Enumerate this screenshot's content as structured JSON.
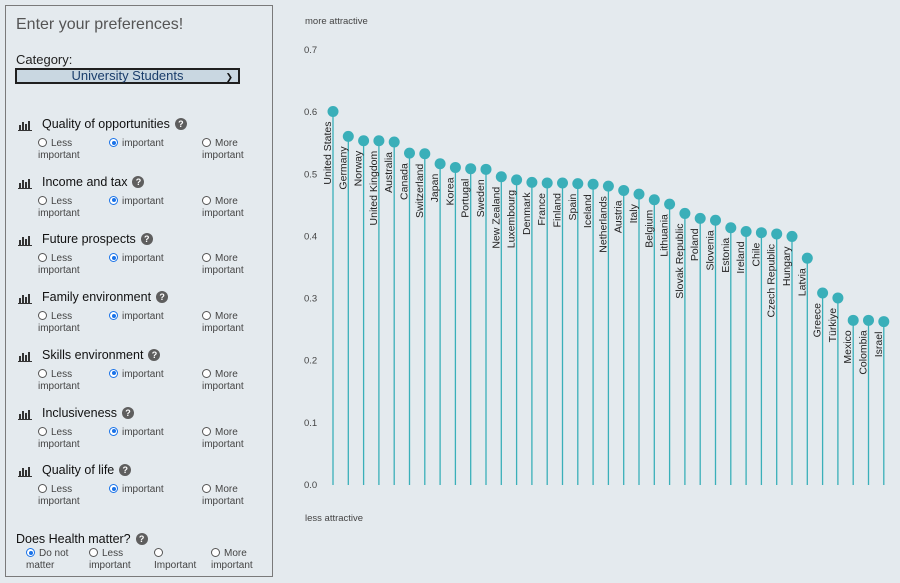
{
  "panel": {
    "title": "Enter your preferences!",
    "category_label": "Category:",
    "category_value": "University Students",
    "groups": [
      {
        "name": "Quality of opportunities",
        "icon": "bar-chart-icon",
        "opts": [
          "Less important",
          "important",
          "More important"
        ],
        "selected": 1
      },
      {
        "name": "Income and tax",
        "icon": "buildings-icon",
        "opts": [
          "Less important",
          "important",
          "More important"
        ],
        "selected": 1
      },
      {
        "name": "Future prospects",
        "icon": "signpost-icon",
        "opts": [
          "Less important",
          "important",
          "More important"
        ],
        "selected": 1
      },
      {
        "name": "Family environment",
        "icon": "family-icon",
        "opts": [
          "Less important",
          "important",
          "More important"
        ],
        "selected": 1
      },
      {
        "name": "Skills environment",
        "icon": "skills-icon",
        "opts": [
          "Less important",
          "important",
          "More important"
        ],
        "selected": 1
      },
      {
        "name": "Inclusiveness",
        "icon": "people-icon",
        "opts": [
          "Less important",
          "important",
          "More important"
        ],
        "selected": 1
      },
      {
        "name": "Quality of life",
        "icon": "quality-of-life-icon",
        "opts": [
          "Less important",
          "important",
          "More important"
        ],
        "selected": 1
      }
    ],
    "health": {
      "question": "Does Health matter?",
      "opts": [
        "Do not matter",
        "Less important",
        "Important",
        "More important"
      ],
      "selected": 0
    }
  },
  "chart_data": {
    "type": "lollipop",
    "top_label": "more attractive",
    "bottom_label": "less attractive",
    "ylim": [
      0,
      0.7
    ],
    "yticks": [
      "0.0",
      "0.1",
      "0.2",
      "0.3",
      "0.4",
      "0.5",
      "0.6",
      "0.7"
    ],
    "color": "#3aafb9",
    "categories": [
      "United States",
      "Germany",
      "Norway",
      "United Kingdom",
      "Australia",
      "Canada",
      "Switzerland",
      "Japan",
      "Korea",
      "Portugal",
      "Sweden",
      "New Zealand",
      "Luxembourg",
      "Denmark",
      "France",
      "Finland",
      "Spain",
      "Iceland",
      "Netherlands",
      "Austria",
      "Italy",
      "Belgium",
      "Lithuania",
      "Slovak Republic",
      "Poland",
      "Slovenia",
      "Estonia",
      "Ireland",
      "Chile",
      "Czech Republic",
      "Hungary",
      "Latvia",
      "Greece",
      "Türkiye",
      "Mexico",
      "Colombia",
      "Israel"
    ],
    "values": [
      0.601,
      0.561,
      0.554,
      0.554,
      0.552,
      0.534,
      0.533,
      0.517,
      0.511,
      0.509,
      0.508,
      0.496,
      0.491,
      0.487,
      0.486,
      0.486,
      0.485,
      0.484,
      0.481,
      0.474,
      0.468,
      0.459,
      0.452,
      0.437,
      0.429,
      0.426,
      0.414,
      0.408,
      0.406,
      0.404,
      0.4,
      0.365,
      0.309,
      0.301,
      0.265,
      0.265,
      0.263
    ]
  }
}
